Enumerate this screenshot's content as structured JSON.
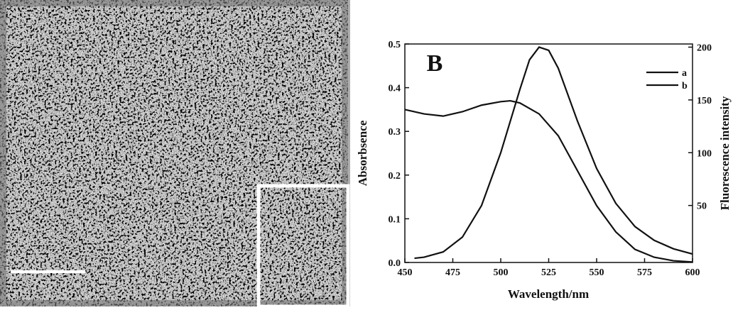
{
  "chart_data": {
    "type": "line",
    "annotation": "B",
    "xlabel": "Wavelength/nm",
    "ylabel": "Absorbsence",
    "y2label": "Fluorescence intensity",
    "xlim": [
      450,
      600
    ],
    "xticks": [
      450,
      475,
      500,
      525,
      550,
      575,
      600
    ],
    "ylim": [
      0,
      0.5
    ],
    "yticks": [
      {
        "value": 0,
        "label": "0.0"
      },
      0.1,
      0.2,
      0.3,
      0.4,
      0.5
    ],
    "y2lim": [
      -4,
      203
    ],
    "y2ticks": [
      50,
      100,
      150,
      200
    ],
    "legend": "upper right",
    "series": [
      {
        "name": "a",
        "color": "#111111",
        "axis": "y",
        "x": [
          450,
          460,
          470,
          480,
          490,
          500,
          505,
          510,
          520,
          530,
          540,
          550,
          560,
          570,
          580,
          590,
          600
        ],
        "values": [
          0.35,
          0.34,
          0.335,
          0.345,
          0.36,
          0.368,
          0.37,
          0.365,
          0.34,
          0.29,
          0.21,
          0.13,
          0.07,
          0.03,
          0.012,
          0.004,
          0.001
        ]
      },
      {
        "name": "b",
        "color": "#111111",
        "axis": "y2",
        "x": [
          455,
          460,
          470,
          480,
          490,
          500,
          510,
          515,
          520,
          525,
          530,
          540,
          550,
          560,
          570,
          580,
          590,
          600
        ],
        "values": [
          0,
          1,
          6,
          20,
          50,
          100,
          160,
          188,
          200,
          197,
          180,
          130,
          85,
          52,
          30,
          17,
          9,
          4
        ]
      }
    ]
  }
}
